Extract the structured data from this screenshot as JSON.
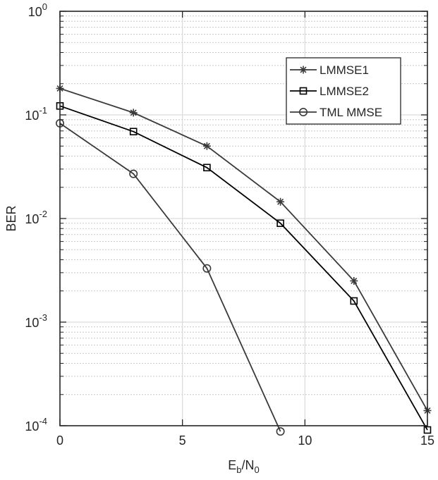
{
  "chart_data": {
    "type": "line",
    "xlabel": {
      "base": "E",
      "sub1": "b",
      "mid": "/N",
      "sub2": "0"
    },
    "ylabel": "BER",
    "xlim": [
      0,
      15
    ],
    "ylim": [
      0.0001,
      1
    ],
    "yscale": "log",
    "grid": true,
    "minor_grid": true,
    "legend_placement": "top-right",
    "x_ticks": [
      0,
      5,
      10,
      15
    ],
    "x_tick_labels": [
      "0",
      "5",
      "10",
      "15"
    ],
    "y_ticks": [
      {
        "value": 1,
        "base": "10",
        "exp": "0"
      },
      {
        "value": 0.1,
        "base": "10",
        "exp": "-1"
      },
      {
        "value": 0.01,
        "base": "10",
        "exp": "-2"
      },
      {
        "value": 0.001,
        "base": "10",
        "exp": "-3"
      },
      {
        "value": 0.0001,
        "base": "10",
        "exp": "-4"
      }
    ],
    "series": [
      {
        "name": "LMMSE1",
        "marker": "asterisk",
        "color": "#3a3a3a",
        "x": [
          0,
          3,
          6,
          9,
          12,
          15
        ],
        "y": [
          0.18,
          0.105,
          0.05,
          0.0145,
          0.0025,
          0.00014
        ]
      },
      {
        "name": "LMMSE2",
        "marker": "square",
        "color": "#000000",
        "x": [
          0,
          3,
          6,
          9,
          12,
          15
        ],
        "y": [
          0.122,
          0.069,
          0.031,
          0.009,
          0.0016,
          9.1e-05
        ]
      },
      {
        "name": "TML MMSE",
        "marker": "circle",
        "color": "#3a3a3a",
        "x": [
          0,
          3,
          6,
          9
        ],
        "y": [
          0.083,
          0.027,
          0.0033,
          8.8e-05
        ]
      }
    ]
  }
}
